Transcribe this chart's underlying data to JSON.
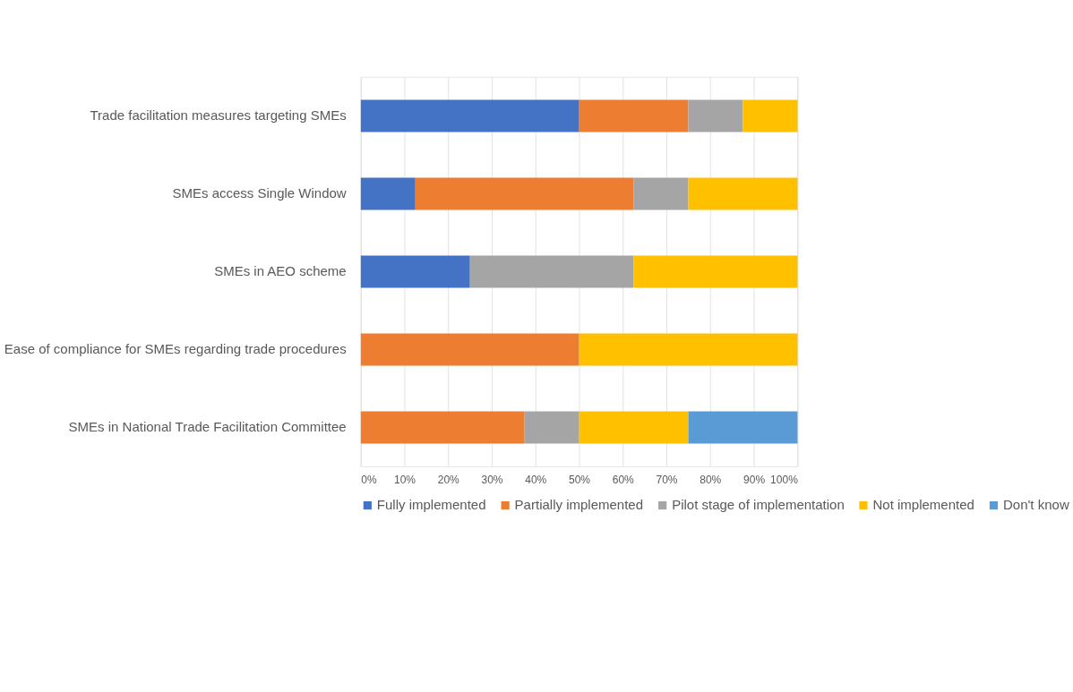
{
  "chart_data": {
    "type": "bar",
    "orientation": "horizontal",
    "stacked": true,
    "categories": [
      "Trade facilitation measures targeting SMEs",
      "SMEs access Single Window",
      "SMEs in AEO scheme",
      "Ease of compliance for SMEs regarding trade procedures",
      "SMEs in National Trade Facilitation Committee"
    ],
    "series": [
      {
        "name": "Fully implemented",
        "color": "#4472c4",
        "values": [
          50,
          12.5,
          25,
          0,
          0
        ]
      },
      {
        "name": "Partially implemented",
        "color": "#ed7d31",
        "values": [
          25,
          50,
          0,
          50,
          37.5
        ]
      },
      {
        "name": "Pilot stage of implementation",
        "color": "#a5a5a5",
        "values": [
          12.5,
          12.5,
          37.5,
          0,
          12.5
        ]
      },
      {
        "name": "Not implemented",
        "color": "#ffc000",
        "values": [
          12.5,
          25,
          37.5,
          50,
          25
        ]
      },
      {
        "name": "Don't know",
        "color": "#5b9bd5",
        "values": [
          0,
          0,
          0,
          0,
          25
        ]
      }
    ],
    "xlim": [
      0,
      100
    ],
    "xticks": [
      {
        "value": 0,
        "label": "0%"
      },
      {
        "value": 10,
        "label": "10%"
      },
      {
        "value": 20,
        "label": "20%"
      },
      {
        "value": 30,
        "label": "30%"
      },
      {
        "value": 40,
        "label": "40%"
      },
      {
        "value": 50,
        "label": "50%"
      },
      {
        "value": 60,
        "label": "60%"
      },
      {
        "value": 70,
        "label": "70%"
      },
      {
        "value": 80,
        "label": "80%"
      },
      {
        "value": 90,
        "label": "90%"
      },
      {
        "value": 100,
        "label": "100%"
      }
    ],
    "grid": "x",
    "legend": "bottom"
  }
}
